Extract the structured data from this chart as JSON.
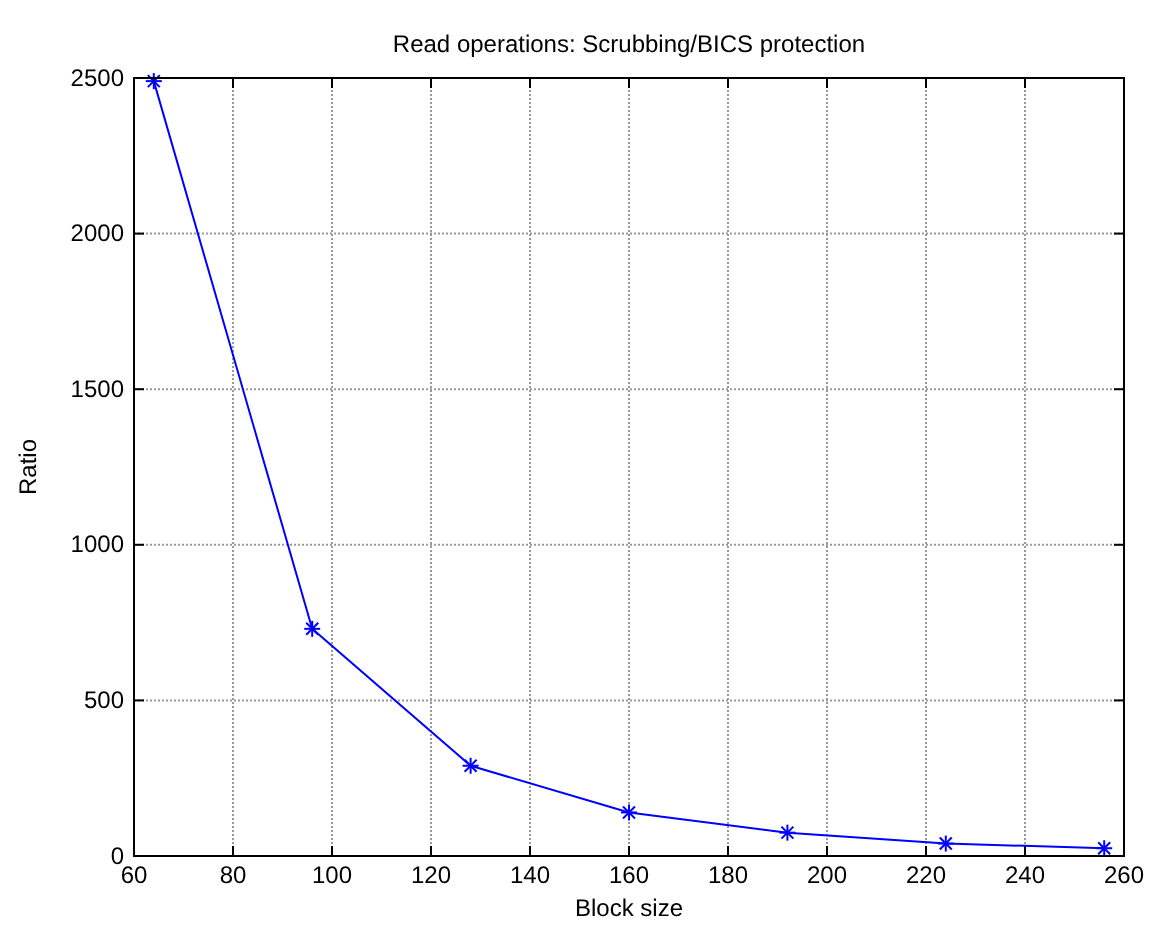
{
  "chart_data": {
    "type": "line",
    "title": "Read operations: Scrubbing/BICS protection",
    "xlabel": "Block size",
    "ylabel": "Ratio",
    "x": [
      64,
      96,
      128,
      160,
      192,
      224,
      256
    ],
    "series": [
      {
        "color": "#0000ff",
        "values": [
          2490,
          730,
          290,
          140,
          75,
          40,
          25
        ]
      }
    ],
    "xlim": [
      60,
      260
    ],
    "xticks": [
      60,
      80,
      100,
      120,
      140,
      160,
      180,
      200,
      220,
      240,
      260
    ],
    "ylim": [
      0,
      2500
    ],
    "yticks": [
      0,
      500,
      1000,
      1500,
      2000,
      2500
    ],
    "grid": true,
    "marker": "cross",
    "line_style": "solid"
  }
}
